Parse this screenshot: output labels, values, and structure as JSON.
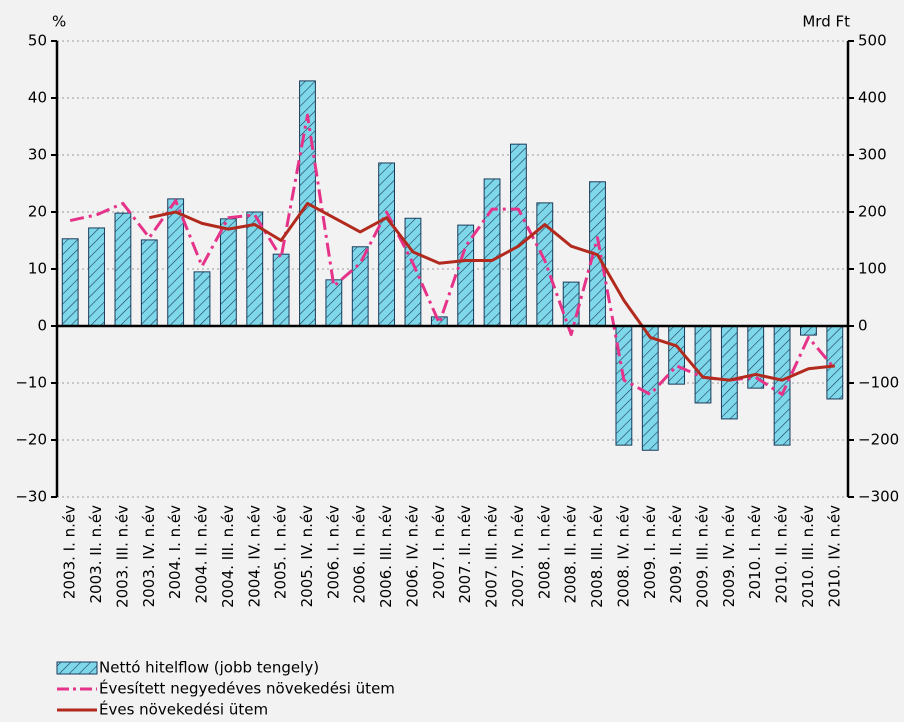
{
  "chart_data": {
    "type": "bar",
    "y_label": "%",
    "y2_label": "Mrd Ft",
    "categories": [
      "2003. I. n.év",
      "2003. II. n.év",
      "2003. III. n.év",
      "2003. IV. n.év",
      "2004. I. n.év",
      "2004. II. n.év",
      "2004. III. n.év",
      "2004. IV. n.év",
      "2005. I. n.év",
      "2005. IV. n.év",
      "2006. I. n.év",
      "2006. II. n.év",
      "2006. III. n.év",
      "2006. IV. n.év",
      "2007. I. n.év",
      "2007. II. n.év",
      "2007. III. n.év",
      "2007. IV. n.év",
      "2008. I. n.év",
      "2008. II. n.év",
      "2008. III. n.év",
      "2008. IV. n.év",
      "2009. I. n.év",
      "2009. II. n.év",
      "2009. III. n.év",
      "2009. IV. n.év",
      "2010. I. n.év",
      "2010. II. n.év",
      "2010. III. n.év",
      "2010. IV. n.év"
    ],
    "series": [
      {
        "name": "Nettó hitelflow (jobb tengely)",
        "type": "bar",
        "axis": "y2",
        "color": "#7fd8ea",
        "values": [
          153,
          172,
          198,
          151,
          223,
          95,
          188,
          200,
          126,
          430,
          81,
          139,
          286,
          189,
          16,
          177,
          258,
          319,
          216,
          77,
          253,
          -209,
          -218,
          -102,
          -135,
          -163,
          -109,
          -209,
          -16,
          -128
        ]
      },
      {
        "name": "Évesített negyedéves növekedési ütem",
        "type": "line",
        "line_style": "dashdot",
        "color": "#e6338a",
        "values": [
          18.5,
          19.5,
          21.5,
          15.5,
          22,
          10.5,
          19,
          19.5,
          12,
          37,
          7,
          11,
          20,
          11,
          0.5,
          14,
          20.5,
          20.5,
          11.5,
          -1.5,
          15.5,
          -9.5,
          -12,
          -7,
          -9,
          -9.5,
          -9,
          -12,
          -2,
          -7.5
        ]
      },
      {
        "name": "Éves növekedési ütem",
        "type": "line",
        "line_style": "solid",
        "color": "#b22a1e",
        "values": [
          null,
          null,
          null,
          19,
          20,
          18,
          17,
          17.8,
          15,
          21.5,
          19,
          16.5,
          19,
          13,
          11,
          11.5,
          11.5,
          14,
          17.8,
          14,
          12.5,
          4.5,
          -2,
          -3.5,
          -9,
          -9.5,
          -8.5,
          -9.5,
          -7.5,
          -7
        ]
      }
    ],
    "ylim": [
      -30,
      50
    ],
    "yticks": [
      {
        "value": -30,
        "label": "−30"
      },
      {
        "value": -20,
        "label": "−20"
      },
      {
        "value": -10,
        "label": "−10"
      },
      0,
      10,
      20,
      30,
      40,
      50
    ],
    "y2lim": [
      -300,
      500
    ],
    "y2ticks": [
      {
        "value": -300,
        "label": "−300"
      },
      {
        "value": -200,
        "label": "−200"
      },
      {
        "value": -100,
        "label": "−100"
      },
      0,
      100,
      200,
      300,
      400,
      500
    ],
    "grid": true
  }
}
